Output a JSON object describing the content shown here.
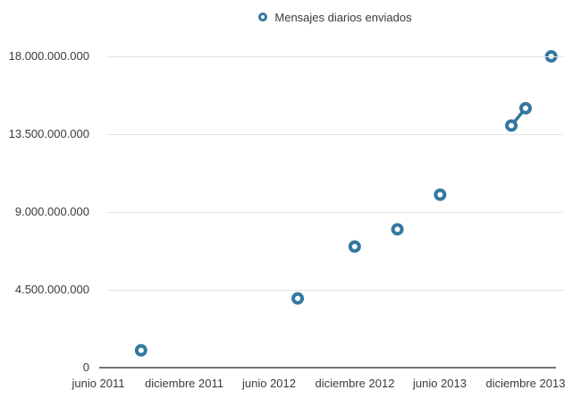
{
  "legend": {
    "label": "Mensajes diarios enviados"
  },
  "colors": {
    "marker": "#3478a0",
    "gridline": "#e3e3e3",
    "axis": "#757575",
    "text": "#3b3b3b"
  },
  "chart_data": {
    "type": "scatter",
    "title": "",
    "xlabel": "",
    "ylabel": "",
    "legend_entries": [
      "Mensajes diarios enviados"
    ],
    "legend_position": "top-center",
    "grid": true,
    "ylim": [
      0,
      18000000000
    ],
    "y_axis": {
      "ticks": [
        {
          "value": 0,
          "label": "0"
        },
        {
          "value": 4500000000,
          "label": "4.500.000.000"
        },
        {
          "value": 9000000000,
          "label": "9.000.000.000"
        },
        {
          "value": 13500000000,
          "label": "13.500.000.000"
        },
        {
          "value": 18000000000,
          "label": "18.000.000.000"
        }
      ]
    },
    "x_axis": {
      "unit": "months since junio 2011",
      "ticks": [
        {
          "month": 0,
          "label": "junio 2011"
        },
        {
          "month": 6,
          "label": "diciembre 2011"
        },
        {
          "month": 12,
          "label": "junio 2012"
        },
        {
          "month": 18,
          "label": "diciembre 2012"
        },
        {
          "month": 24,
          "label": "junio 2013"
        },
        {
          "month": 30,
          "label": "diciembre 2013"
        }
      ]
    },
    "points": [
      {
        "date": "septiembre 2011",
        "month": 3,
        "value": 1000000000
      },
      {
        "date": "agosto 2012",
        "month": 14,
        "value": 4000000000
      },
      {
        "date": "diciembre 2012",
        "month": 18,
        "value": 7000000000
      },
      {
        "date": "marzo 2013",
        "month": 21,
        "value": 8000000000
      },
      {
        "date": "junio 2013",
        "month": 24,
        "value": 10000000000
      },
      {
        "date": "noviembre 2013",
        "month": 29,
        "value": 14000000000
      },
      {
        "date": "diciembre 2013",
        "month": 30,
        "value": 15000000000
      },
      {
        "date": "enero 2014",
        "month": 31.8,
        "value": 18000000000
      }
    ],
    "connected_segments": [
      [
        5,
        6
      ]
    ]
  }
}
